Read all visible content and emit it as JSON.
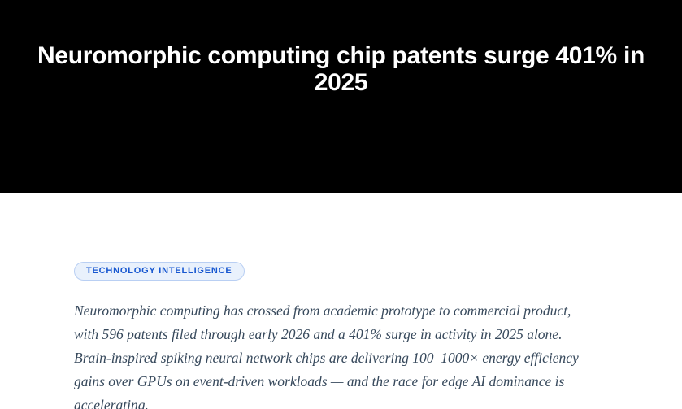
{
  "hero": {
    "title": "Neuromorphic computing chip patents surge 401% in 2025"
  },
  "article": {
    "category_badge": "TECHNOLOGY INTELLIGENCE",
    "lead_paragraph": "Neuromorphic computing has crossed from academic prototype to commercial product, with 596 patents filed through early 2026 and a 401% surge in activity in 2025 alone. Brain-inspired spiking neural network chips are delivering 100–1000× energy efficiency gains over GPUs on event-driven workloads — and the race for edge AI dominance is accelerating."
  },
  "colors": {
    "hero_background": "#000000",
    "hero_text": "#ffffff",
    "badge_background": "#e9f1fc",
    "badge_border": "#b9cff3",
    "badge_text": "#1757d0",
    "paragraph_text": "#37495c"
  }
}
